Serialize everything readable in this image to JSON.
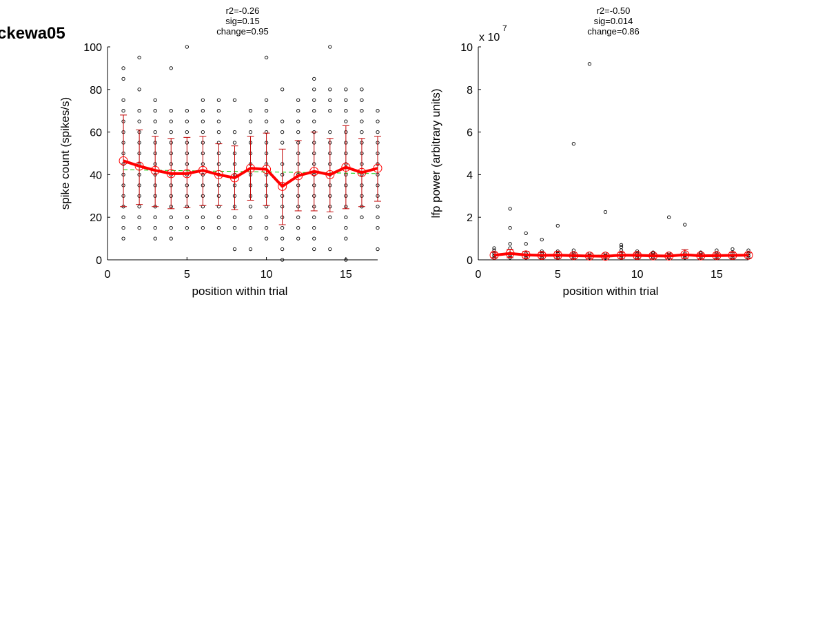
{
  "figure_label": "ckewa05",
  "chart_data": [
    {
      "type": "scatter",
      "title_lines": [
        "r2=-0.26",
        "sig=0.15",
        "change=0.95"
      ],
      "xlabel": "position within trial",
      "ylabel": "spike count (spikes/s)",
      "xlim": [
        0,
        17
      ],
      "ylim": [
        0,
        100
      ],
      "xticks": [
        0,
        5,
        10,
        15
      ],
      "yticks": [
        0,
        20,
        40,
        60,
        80,
        100
      ],
      "x": [
        1,
        2,
        3,
        4,
        5,
        6,
        7,
        8,
        9,
        10,
        11,
        12,
        13,
        14,
        15,
        16,
        17
      ],
      "mean": [
        46.5,
        44,
        42,
        40.5,
        40.5,
        42,
        40,
        38.5,
        43,
        42.5,
        34.5,
        39.5,
        41.5,
        40,
        43.5,
        41,
        43
      ],
      "err_low": [
        25,
        26,
        25,
        24,
        24.5,
        25.5,
        25.5,
        23.5,
        28,
        25.5,
        16.5,
        23,
        23,
        22.5,
        24,
        25,
        27.5
      ],
      "err_high": [
        68,
        61,
        58,
        57,
        57.5,
        58,
        54.5,
        53.5,
        58,
        59.5,
        52,
        56,
        60,
        57,
        63,
        57,
        58
      ],
      "trend": [
        42.3,
        40.5
      ],
      "trials": [
        [
          10,
          15,
          20,
          25,
          30,
          35,
          40,
          45,
          50,
          55,
          60,
          65,
          70,
          75,
          85,
          90
        ],
        [
          15,
          20,
          25,
          30,
          35,
          40,
          45,
          50,
          55,
          60,
          65,
          70,
          80,
          95
        ],
        [
          10,
          15,
          20,
          25,
          30,
          35,
          40,
          45,
          50,
          55,
          60,
          65,
          70,
          75
        ],
        [
          10,
          15,
          20,
          25,
          30,
          35,
          40,
          45,
          50,
          55,
          60,
          65,
          70,
          90
        ],
        [
          15,
          20,
          25,
          30,
          35,
          40,
          45,
          50,
          55,
          60,
          65,
          70,
          100
        ],
        [
          15,
          20,
          25,
          30,
          35,
          40,
          45,
          50,
          55,
          60,
          65,
          70,
          75
        ],
        [
          15,
          20,
          25,
          30,
          35,
          40,
          45,
          50,
          55,
          60,
          65,
          70,
          75
        ],
        [
          5,
          15,
          20,
          25,
          30,
          35,
          40,
          45,
          50,
          55,
          60,
          75
        ],
        [
          5,
          15,
          20,
          25,
          30,
          35,
          40,
          45,
          50,
          55,
          60,
          65,
          70
        ],
        [
          10,
          15,
          20,
          25,
          30,
          35,
          40,
          45,
          50,
          55,
          60,
          65,
          70,
          75,
          95
        ],
        [
          0,
          5,
          10,
          15,
          20,
          25,
          30,
          35,
          40,
          45,
          55,
          60,
          65,
          80
        ],
        [
          10,
          15,
          20,
          25,
          30,
          35,
          40,
          45,
          50,
          55,
          60,
          65,
          70,
          75
        ],
        [
          5,
          10,
          15,
          20,
          25,
          30,
          35,
          40,
          45,
          50,
          55,
          60,
          65,
          70,
          75,
          80,
          85
        ],
        [
          5,
          20,
          25,
          30,
          35,
          40,
          45,
          50,
          55,
          60,
          70,
          75,
          80,
          100
        ],
        [
          0,
          10,
          15,
          20,
          25,
          30,
          35,
          40,
          45,
          50,
          55,
          60,
          65,
          70,
          75,
          80
        ],
        [
          20,
          25,
          30,
          35,
          40,
          45,
          50,
          55,
          60,
          65,
          70,
          75,
          80
        ],
        [
          5,
          15,
          20,
          25,
          30,
          35,
          40,
          45,
          50,
          55,
          60,
          65,
          70
        ]
      ],
      "colors": {
        "mean": "#ff0000",
        "errorbar": "#c00000",
        "trend": "#00cc00",
        "points": "#000000"
      }
    },
    {
      "type": "scatter",
      "title_lines": [
        "r2=-0.50",
        "sig=0.014",
        "change=0.86"
      ],
      "xlabel": "position within trial",
      "ylabel": "lfp power (arbitrary units)",
      "exponent_label": "x 10",
      "exponent": "7",
      "xlim": [
        0,
        17
      ],
      "ylim": [
        0,
        10
      ],
      "xticks": [
        0,
        5,
        10,
        15
      ],
      "yticks": [
        0,
        2,
        4,
        6,
        8,
        10
      ],
      "x": [
        1,
        2,
        3,
        4,
        5,
        6,
        7,
        8,
        9,
        10,
        11,
        12,
        13,
        14,
        15,
        16,
        17
      ],
      "mean": [
        0.22,
        0.3,
        0.23,
        0.21,
        0.22,
        0.2,
        0.18,
        0.17,
        0.22,
        0.21,
        0.19,
        0.18,
        0.24,
        0.19,
        0.2,
        0.21,
        0.22
      ],
      "err_low": [
        0.1,
        0.1,
        0.08,
        0.08,
        0.06,
        0.06,
        0.06,
        0.06,
        0.06,
        0.06,
        0.06,
        0.06,
        0.06,
        0.06,
        0.06,
        0.08,
        0.08
      ],
      "err_high": [
        0.35,
        0.5,
        0.4,
        0.35,
        0.38,
        0.32,
        0.28,
        0.28,
        0.35,
        0.32,
        0.3,
        0.3,
        0.48,
        0.3,
        0.32,
        0.35,
        0.33
      ],
      "trend": [
        0.25,
        0.18
      ],
      "trials": [
        [
          0.1,
          0.2,
          0.3,
          0.45,
          0.55
        ],
        [
          0.1,
          0.2,
          0.3,
          0.55,
          0.75,
          1.5,
          2.4
        ],
        [
          0.1,
          0.2,
          0.3,
          0.75,
          1.25
        ],
        [
          0.1,
          0.2,
          0.3,
          0.4,
          0.95
        ],
        [
          0.1,
          0.2,
          0.3,
          0.4,
          1.6
        ],
        [
          0.1,
          0.2,
          0.3,
          0.45,
          5.45
        ],
        [
          0.1,
          0.2,
          0.3,
          9.2
        ],
        [
          0.1,
          0.2,
          0.3,
          2.25
        ],
        [
          0.1,
          0.2,
          0.3,
          0.45,
          0.6,
          0.7
        ],
        [
          0.1,
          0.2,
          0.3,
          0.4
        ],
        [
          0.1,
          0.2,
          0.3,
          0.35
        ],
        [
          0.1,
          0.2,
          0.3,
          2.0
        ],
        [
          0.1,
          0.2,
          0.3,
          1.65
        ],
        [
          0.1,
          0.2,
          0.3,
          0.35
        ],
        [
          0.1,
          0.2,
          0.3,
          0.45
        ],
        [
          0.1,
          0.2,
          0.3,
          0.5
        ],
        [
          0.1,
          0.2,
          0.3,
          0.45
        ]
      ],
      "colors": {
        "mean": "#ff0000",
        "errorbar": "#c00000",
        "trend": "#00cc00",
        "points": "#000000"
      }
    }
  ]
}
